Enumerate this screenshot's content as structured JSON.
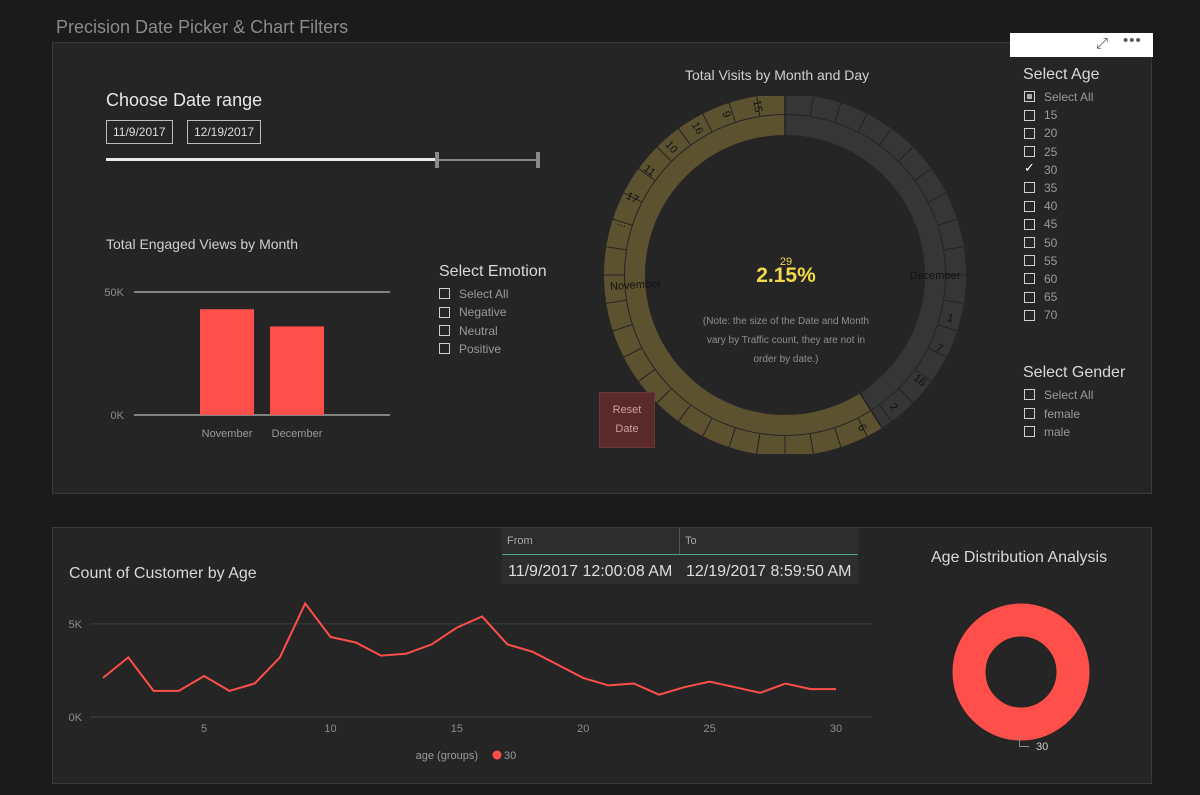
{
  "page_title": "Precision Date Picker & Chart Filters",
  "date_range": {
    "title": "Choose Date range",
    "start": "11/9/2017",
    "end": "12/19/2017",
    "slider_start_fraction": 0.0,
    "slider_left_handle_fraction": 0.76,
    "slider_right_handle_fraction": 1.0
  },
  "emotion_slicer": {
    "title": "Select Emotion",
    "items": [
      {
        "label": "Select All",
        "state": "unchecked"
      },
      {
        "label": "Negative",
        "state": "unchecked"
      },
      {
        "label": "Neutral",
        "state": "unchecked"
      },
      {
        "label": "Positive",
        "state": "unchecked"
      }
    ]
  },
  "age_slicer": {
    "title": "Select Age",
    "items": [
      {
        "label": "Select All",
        "state": "partial"
      },
      {
        "label": "15",
        "state": "unchecked"
      },
      {
        "label": "20",
        "state": "unchecked"
      },
      {
        "label": "25",
        "state": "unchecked"
      },
      {
        "label": "30",
        "state": "checked"
      },
      {
        "label": "35",
        "state": "unchecked"
      },
      {
        "label": "40",
        "state": "unchecked"
      },
      {
        "label": "45",
        "state": "unchecked"
      },
      {
        "label": "50",
        "state": "unchecked"
      },
      {
        "label": "55",
        "state": "unchecked"
      },
      {
        "label": "60",
        "state": "unchecked"
      },
      {
        "label": "65",
        "state": "unchecked"
      },
      {
        "label": "70",
        "state": "unchecked"
      }
    ]
  },
  "gender_slicer": {
    "title": "Select Gender",
    "items": [
      {
        "label": "Select All",
        "state": "unchecked"
      },
      {
        "label": "female",
        "state": "unchecked"
      },
      {
        "label": "male",
        "state": "unchecked"
      }
    ]
  },
  "reset_button": {
    "line1": "Reset",
    "line2": "Date"
  },
  "visits_wheel": {
    "title": "Total Visits  by Month and Day",
    "center_small": "29",
    "center_value": "2.15%",
    "note_lines": [
      "(Note: the size of the Date and Month",
      "vary by Traffic count, they are not in",
      "order by date.)"
    ],
    "month_labels": [
      "November",
      "December"
    ],
    "day_labels_selected": [
      "15",
      "9",
      "16",
      "10",
      "11",
      "17",
      "..."
    ],
    "day_labels_unselected": [
      "1",
      "7",
      "16",
      "2",
      "6"
    ],
    "selected_fraction": 0.59,
    "colors": {
      "selected": "#5c5230",
      "unselected": "#363636"
    }
  },
  "date_table": {
    "from_header": "From",
    "to_header": "To",
    "from_value": "11/9/2017 12:00:08 AM",
    "to_value": "12/19/2017 8:59:50 AM"
  },
  "donut": {
    "title": "Age Distribution Analysis",
    "label": "30",
    "color": "#ff4f4a"
  },
  "toolbar": {
    "focus_icon": "focus-mode-icon",
    "more_icon": "more-options-icon"
  },
  "chart_data": [
    {
      "type": "bar",
      "title": "Total Engaged Views by Month",
      "categories": [
        "November",
        "December"
      ],
      "values": [
        43000,
        36000
      ],
      "ylim": [
        0,
        50000
      ],
      "yticks": [
        "50K",
        "0K"
      ],
      "color": "#ff4f4a",
      "grid": true
    },
    {
      "type": "line",
      "title": "Count of Customer by Age",
      "x": [
        1,
        2,
        3,
        4,
        5,
        6,
        7,
        8,
        9,
        10,
        11,
        12,
        13,
        14,
        15,
        16,
        17,
        18,
        19,
        20,
        21,
        22,
        23,
        24,
        25,
        26,
        27,
        28,
        29,
        30
      ],
      "series": [
        {
          "values": [
            2.1,
            3.2,
            1.4,
            1.4,
            2.2,
            1.4,
            1.8,
            3.2,
            6.1,
            4.3,
            4.0,
            3.3,
            3.4,
            3.9,
            4.8,
            5.4,
            3.9,
            3.5,
            2.8,
            2.1,
            1.7,
            1.8,
            1.2,
            1.6,
            1.9,
            1.6,
            1.3,
            1.8,
            1.5,
            1.5
          ]
        }
      ],
      "ylim": [
        0,
        6.5
      ],
      "yticks": [
        {
          "value": 5,
          "label": "5K"
        },
        {
          "value": 0,
          "label": "0K"
        }
      ],
      "xticks": [
        5,
        10,
        15,
        20,
        25,
        30
      ],
      "legend_title": "age (groups)",
      "legend_items": [
        {
          "name": "30",
          "color": "#ff4f4a"
        }
      ],
      "color": "#ff4f4a"
    }
  ]
}
